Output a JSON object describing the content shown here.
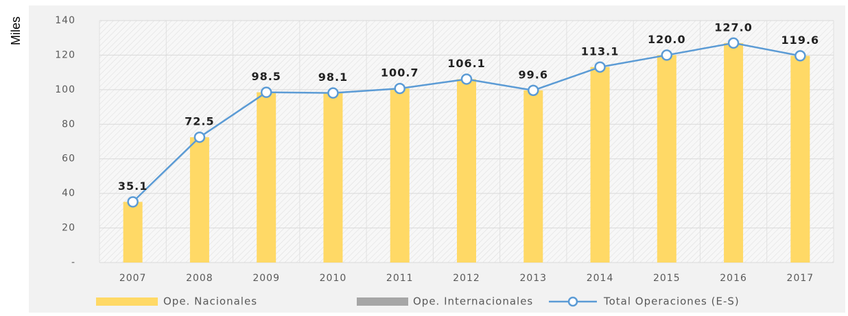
{
  "chart_data": {
    "type": "bar",
    "ylabel": "Miles",
    "categories": [
      "2007",
      "2008",
      "2009",
      "2010",
      "2011",
      "2012",
      "2013",
      "2014",
      "2015",
      "2016",
      "2017"
    ],
    "series": [
      {
        "name": "Ope. Nacionales",
        "type": "bar",
        "color": "#ffd966",
        "values": [
          35.1,
          72.5,
          98.5,
          98.1,
          100.7,
          106.1,
          99.6,
          113.1,
          120.0,
          127.0,
          119.6
        ]
      },
      {
        "name": "Ope. Internacionales",
        "type": "bar",
        "color": "#a6a6a6",
        "values": [
          0,
          0,
          0,
          0,
          0,
          0,
          0,
          0,
          0,
          0,
          0
        ]
      },
      {
        "name": "Total Operaciones (E-S)",
        "type": "line",
        "color": "#5b9bd5",
        "values": [
          35.1,
          72.5,
          98.5,
          98.1,
          100.7,
          106.1,
          99.6,
          113.1,
          120.0,
          127.0,
          119.6
        ],
        "value_labels": [
          "35.1",
          "72.5",
          "98.5",
          "98.1",
          "100.7",
          "106.1",
          "99.6",
          "113.1",
          "120.0",
          "127.0",
          "119.6"
        ]
      }
    ],
    "ylim": [
      0,
      140
    ],
    "yticks": [
      {
        "value": 0,
        "label": "-"
      },
      20,
      40,
      60,
      80,
      100,
      120,
      140
    ],
    "grid": true,
    "legend": "bottom"
  }
}
